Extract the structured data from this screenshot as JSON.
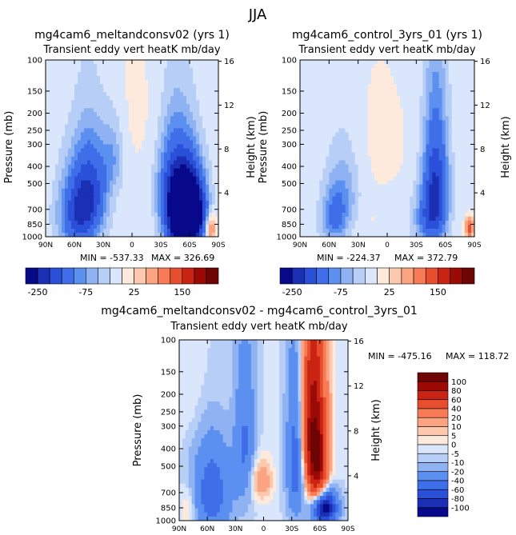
{
  "figure": {
    "season_title": "JJA"
  },
  "colors": {
    "diverging_scale": [
      "#08088a",
      "#1a2fb4",
      "#2a4fd8",
      "#3f6ee8",
      "#5b8ff0",
      "#8fb2f3",
      "#b7cff7",
      "#d9e6fb",
      "#fdeadc",
      "#fcc8ae",
      "#fca482",
      "#f77b56",
      "#e74e2e",
      "#c92413",
      "#9c0a06",
      "#6e0404"
    ]
  },
  "chart_data": [
    {
      "id": "panel1",
      "type": "heatmap",
      "title": "mg4cam6_meltandconsv02 (yrs 1)",
      "subtitle": "Transient eddy vert heatK mb/day",
      "ylabel": "Pressure (mb)",
      "ylabel_right": "Height (km)",
      "x_ticks": [
        "90N",
        "60N",
        "30N",
        "0",
        "30S",
        "60S",
        "90S"
      ],
      "x_tick_values": [
        90,
        60,
        30,
        0,
        -30,
        -60,
        -90
      ],
      "y_ticks": [
        "100",
        "150",
        "200",
        "250",
        "300",
        "400",
        "500",
        "700",
        "850",
        "1000"
      ],
      "y_tick_values": [
        100,
        150,
        200,
        250,
        300,
        400,
        500,
        700,
        850,
        1000
      ],
      "y_right_ticks": [
        "16",
        "12",
        "8",
        "4"
      ],
      "y_right_tick_values": [
        16,
        12,
        8,
        4
      ],
      "ylim": [
        1000,
        100
      ],
      "xlim": [
        90,
        -90
      ],
      "stats": {
        "min_label": "MIN = -537.33",
        "max_label": "MAX = 326.69",
        "min": -537.33,
        "max": 326.69
      },
      "features": [
        {
          "lat": 55,
          "pressure": 750,
          "value": -180,
          "lat_sigma": 14,
          "p_sigma": 260
        },
        {
          "lat": 42,
          "pressure": 520,
          "value": -120,
          "lat_sigma": 12,
          "p_sigma": 220
        },
        {
          "lat": 20,
          "pressure": 350,
          "value": -60,
          "lat_sigma": 8,
          "p_sigma": 120
        },
        {
          "lat": -55,
          "pressure": 820,
          "value": -420,
          "lat_sigma": 12,
          "p_sigma": 220
        },
        {
          "lat": -45,
          "pressure": 520,
          "value": -180,
          "lat_sigma": 12,
          "p_sigma": 220
        },
        {
          "lat": -62,
          "pressure": 650,
          "value": -200,
          "lat_sigma": 10,
          "p_sigma": 200
        },
        {
          "lat": -82,
          "pressure": 900,
          "value": 120,
          "lat_sigma": 4,
          "p_sigma": 120
        },
        {
          "lat": 5,
          "pressure": 200,
          "value": 12,
          "lat_sigma": 40,
          "p_sigma": 150
        },
        {
          "lat": -15,
          "pressure": 700,
          "value": 10,
          "lat_sigma": 8,
          "p_sigma": 200
        }
      ],
      "baseline": -8
    },
    {
      "id": "panel2",
      "type": "heatmap",
      "title": "mg4cam6_control_3yrs_01 (yrs 1)",
      "subtitle": "Transient eddy vert heatK mb/day",
      "ylabel": "Pressure (mb)",
      "ylabel_right": "Height (km)",
      "x_ticks": [
        "90N",
        "60N",
        "30N",
        "0",
        "30S",
        "60S",
        "90S"
      ],
      "x_tick_values": [
        90,
        60,
        30,
        0,
        -30,
        -60,
        -90
      ],
      "y_ticks": [
        "100",
        "150",
        "200",
        "250",
        "300",
        "400",
        "500",
        "700",
        "850",
        "1000"
      ],
      "y_tick_values": [
        100,
        150,
        200,
        250,
        300,
        400,
        500,
        700,
        850,
        1000
      ],
      "y_right_ticks": [
        "16",
        "12",
        "8",
        "4"
      ],
      "y_right_tick_values": [
        16,
        12,
        8,
        4
      ],
      "ylim": [
        1000,
        100
      ],
      "xlim": [
        90,
        -90
      ],
      "stats": {
        "min_label": "MIN = -224.37",
        "max_label": "MAX = 372.79",
        "min": -224.37,
        "max": 372.79
      },
      "features": [
        {
          "lat": 55,
          "pressure": 800,
          "value": -90,
          "lat_sigma": 10,
          "p_sigma": 200
        },
        {
          "lat": 45,
          "pressure": 550,
          "value": -60,
          "lat_sigma": 12,
          "p_sigma": 220
        },
        {
          "lat": -50,
          "pressure": 550,
          "value": -200,
          "lat_sigma": 9,
          "p_sigma": 300
        },
        {
          "lat": -40,
          "pressure": 800,
          "value": -80,
          "lat_sigma": 10,
          "p_sigma": 200
        },
        {
          "lat": -85,
          "pressure": 900,
          "value": 150,
          "lat_sigma": 3,
          "p_sigma": 80
        },
        {
          "lat": 10,
          "pressure": 300,
          "value": 10,
          "lat_sigma": 30,
          "p_sigma": 200
        },
        {
          "lat": 20,
          "pressure": 800,
          "value": 8,
          "lat_sigma": 10,
          "p_sigma": 150
        }
      ],
      "baseline": -6
    },
    {
      "id": "panel3",
      "type": "heatmap",
      "title": "mg4cam6_meltandconsv02 - mg4cam6_control_3yrs_01",
      "subtitle": "Transient eddy vert heatK mb/day",
      "ylabel": "Pressure (mb)",
      "ylabel_right": "Height (km)",
      "x_ticks": [
        "90N",
        "60N",
        "30N",
        "0",
        "30S",
        "60S",
        "90S"
      ],
      "x_tick_values": [
        90,
        60,
        30,
        0,
        -30,
        -60,
        -90
      ],
      "y_ticks": [
        "100",
        "150",
        "200",
        "250",
        "300",
        "400",
        "500",
        "700",
        "850",
        "1000"
      ],
      "y_tick_values": [
        100,
        150,
        200,
        250,
        300,
        400,
        500,
        700,
        850,
        1000
      ],
      "y_right_ticks": [
        "16",
        "12",
        "8",
        "4"
      ],
      "y_right_tick_values": [
        16,
        12,
        8,
        4
      ],
      "ylim": [
        1000,
        100
      ],
      "xlim": [
        90,
        -90
      ],
      "stats": {
        "min_label": "MIN = -475.16",
        "max_label": "MAX = 118.72",
        "min": -475.16,
        "max": 118.72
      },
      "features": [
        {
          "lat": -52,
          "pressure": 300,
          "value": 90,
          "lat_sigma": 10,
          "p_sigma": 250
        },
        {
          "lat": -58,
          "pressure": 550,
          "value": 60,
          "lat_sigma": 7,
          "p_sigma": 200
        },
        {
          "lat": -35,
          "pressure": 450,
          "value": -60,
          "lat_sigma": 7,
          "p_sigma": 300
        },
        {
          "lat": -65,
          "pressure": 850,
          "value": -120,
          "lat_sigma": 9,
          "p_sigma": 120
        },
        {
          "lat": 55,
          "pressure": 700,
          "value": -50,
          "lat_sigma": 14,
          "p_sigma": 300
        },
        {
          "lat": 20,
          "pressure": 400,
          "value": -40,
          "lat_sigma": 8,
          "p_sigma": 250
        },
        {
          "lat": 5,
          "pressure": 600,
          "value": 25,
          "lat_sigma": 10,
          "p_sigma": 120
        },
        {
          "lat": 60,
          "pressure": 200,
          "value": 8,
          "lat_sigma": 20,
          "p_sigma": 120
        },
        {
          "lat": 80,
          "pressure": 850,
          "value": 15,
          "lat_sigma": 6,
          "p_sigma": 150
        }
      ],
      "baseline": -4
    }
  ],
  "colorbars": [
    {
      "id": "cb1",
      "type": "horizontal",
      "labels": [
        "-250",
        "-75",
        "25",
        "150"
      ],
      "label_levels": [
        -250,
        -75,
        25,
        150
      ],
      "levels": [
        -300,
        -250,
        -200,
        -150,
        -100,
        -75,
        -50,
        -25,
        0,
        25,
        50,
        75,
        100,
        150,
        200,
        250,
        300
      ]
    },
    {
      "id": "cb2",
      "type": "horizontal",
      "labels": [
        "-250",
        "-75",
        "25",
        "150"
      ],
      "label_levels": [
        -250,
        -75,
        25,
        150
      ],
      "levels": [
        -300,
        -250,
        -200,
        -150,
        -100,
        -75,
        -50,
        -25,
        0,
        25,
        50,
        75,
        100,
        150,
        200,
        250,
        300
      ]
    },
    {
      "id": "cb3",
      "type": "vertical",
      "labels": [
        "100",
        "80",
        "60",
        "40",
        "20",
        "10",
        "5",
        "0",
        "-5",
        "-10",
        "-20",
        "-40",
        "-60",
        "-80",
        "-100"
      ],
      "levels": [
        120,
        100,
        80,
        60,
        40,
        20,
        10,
        5,
        0,
        -5,
        -10,
        -20,
        -40,
        -60,
        -80,
        -100,
        -120
      ]
    }
  ]
}
